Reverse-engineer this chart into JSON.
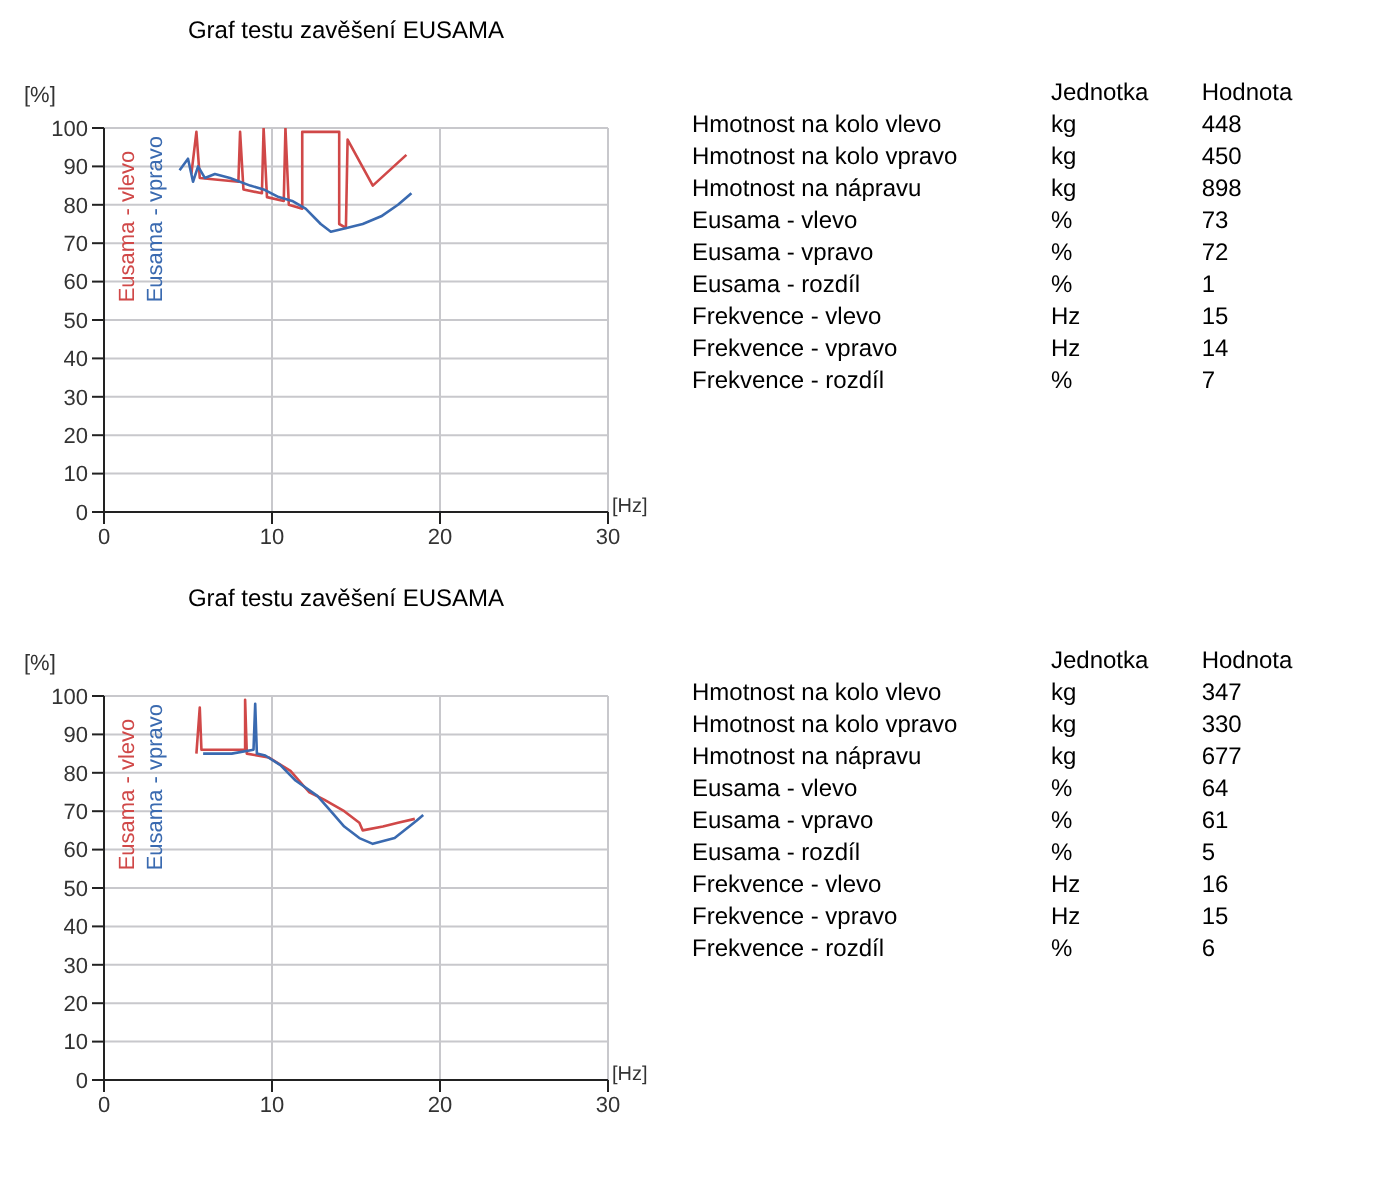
{
  "chart_data": [
    {
      "type": "line",
      "title": "Graf testu zavěšení EUSAMA",
      "xlabel": "[Hz]",
      "ylabel": "[%]",
      "xlim": [
        0,
        30
      ],
      "xticks": [
        0,
        10,
        20,
        30
      ],
      "ylim": [
        0,
        100
      ],
      "yticks": [
        0,
        10,
        20,
        30,
        40,
        50,
        60,
        70,
        80,
        90,
        100
      ],
      "grid": true,
      "legend": "top left",
      "series": [
        {
          "name": "Eusama - vlevo",
          "color": "#d04848",
          "x": [
            5.2,
            5.5,
            5.7,
            8.0,
            8.1,
            8.3,
            9.4,
            9.5,
            9.7,
            10.7,
            10.8,
            11.0,
            11.8,
            11.8,
            14.0,
            14.0,
            14.4,
            14.5,
            16.0,
            18.0
          ],
          "values": [
            88,
            99,
            87,
            86,
            99,
            84,
            83,
            100,
            82,
            81,
            100,
            80,
            79,
            99,
            99,
            75,
            74,
            97,
            85,
            93
          ]
        },
        {
          "name": "Eusama - vpravo",
          "color": "#3a6ab0",
          "x": [
            4.5,
            5.0,
            5.3,
            5.6,
            6.0,
            6.6,
            7.5,
            8.7,
            9.5,
            10.4,
            11.2,
            12.0,
            12.9,
            13.5,
            14.5,
            15.4,
            16.5,
            17.5,
            18.3
          ],
          "values": [
            89,
            92,
            86,
            90,
            87,
            88,
            87,
            85,
            84,
            82,
            81,
            79,
            75,
            73,
            74,
            75,
            77,
            80,
            83
          ]
        }
      ]
    },
    {
      "type": "other",
      "annotations": [
        "Jednotka",
        "Hodnota",
        "Hmotnost na kolo vlevo",
        "kg",
        "448",
        "Hmotnost na kolo vpravo",
        "kg",
        "450",
        "Hmotnost na nápravu",
        "kg",
        "898",
        "Eusama - vlevo",
        "%",
        "73",
        "Eusama - vpravo",
        "%",
        "72",
        "Eusama - rozdíl",
        "%",
        "1",
        "Frekvence - vlevo",
        "Hz",
        "15",
        "Frekvence - vpravo",
        "Hz",
        "14",
        "Frekvence - rozdíl",
        "%",
        "7"
      ]
    },
    {
      "type": "line",
      "title": "Graf testu zavěšení EUSAMA",
      "xlabel": "[Hz]",
      "ylabel": "[%]",
      "xlim": [
        0,
        30
      ],
      "xticks": [
        0,
        10,
        20,
        30
      ],
      "ylim": [
        0,
        100
      ],
      "yticks": [
        0,
        10,
        20,
        30,
        40,
        50,
        60,
        70,
        80,
        90,
        100
      ],
      "grid": true,
      "legend": "top left",
      "series": [
        {
          "name": "Eusama - vlevo",
          "color": "#d04848",
          "x": [
            5.5,
            5.7,
            5.8,
            6.5,
            7.6,
            8.4,
            8.4,
            8.5,
            9.8,
            11.1,
            12.2,
            13.1,
            14.3,
            15.2,
            15.4,
            16.6,
            17.5,
            18.5
          ],
          "values": [
            85,
            97,
            86,
            86,
            86,
            86,
            99,
            85,
            84,
            80.5,
            75,
            73,
            70,
            67,
            65,
            66,
            67,
            68
          ]
        },
        {
          "name": "Eusama - vpravo",
          "color": "#3a6ab0",
          "x": [
            5.9,
            6.5,
            7.6,
            8.9,
            9.0,
            9.1,
            9.6,
            10.5,
            11.4,
            12.7,
            13.5,
            14.3,
            15.2,
            16.0,
            17.3,
            18.6,
            19.0
          ],
          "values": [
            85,
            85,
            85,
            86,
            98,
            85,
            84.5,
            82,
            78,
            74,
            70,
            66,
            63,
            61.5,
            63,
            67.5,
            69
          ]
        }
      ]
    },
    {
      "type": "other",
      "annotations": [
        "Jednotka",
        "Hodnota",
        "Hmotnost na kolo vlevo",
        "kg",
        "347",
        "Hmotnost na kolo vpravo",
        "kg",
        "330",
        "Hmotnost na nápravu",
        "kg",
        "677",
        "Eusama - vlevo",
        "%",
        "64",
        "Eusama - vpravo",
        "%",
        "61",
        "Eusama - rozdíl",
        "%",
        "5",
        "Frekvence - vlevo",
        "Hz",
        "16",
        "Frekvence - vpravo",
        "Hz",
        "15",
        "Frekvence - rozdíl",
        "%",
        "6"
      ]
    }
  ]
}
